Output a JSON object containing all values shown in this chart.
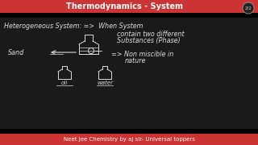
{
  "bg_color": "#1a1a1a",
  "title_bg_top": "#cc3333",
  "title_bg_bottom": "#000000",
  "title_text": "Thermodynamics - System",
  "title_color": "#ffffff",
  "footer_bg_top": "#000000",
  "footer_bg_bottom": "#cc3333",
  "footer_text": "Neet Jee Chemistry by aj sir- Universal toppers",
  "footer_color": "#ffffff",
  "badge_text": "2/2",
  "badge_color": "#cccccc",
  "hw_color": "#dddddd",
  "line1": "Heterogeneous System: =>  When System",
  "line2": "contain two different",
  "line3": "Substances (Phase)",
  "line4": "=> Non miscible in",
  "line5": "nature",
  "sand_label": "Sand",
  "oil_label": "oil",
  "water_label": "water"
}
